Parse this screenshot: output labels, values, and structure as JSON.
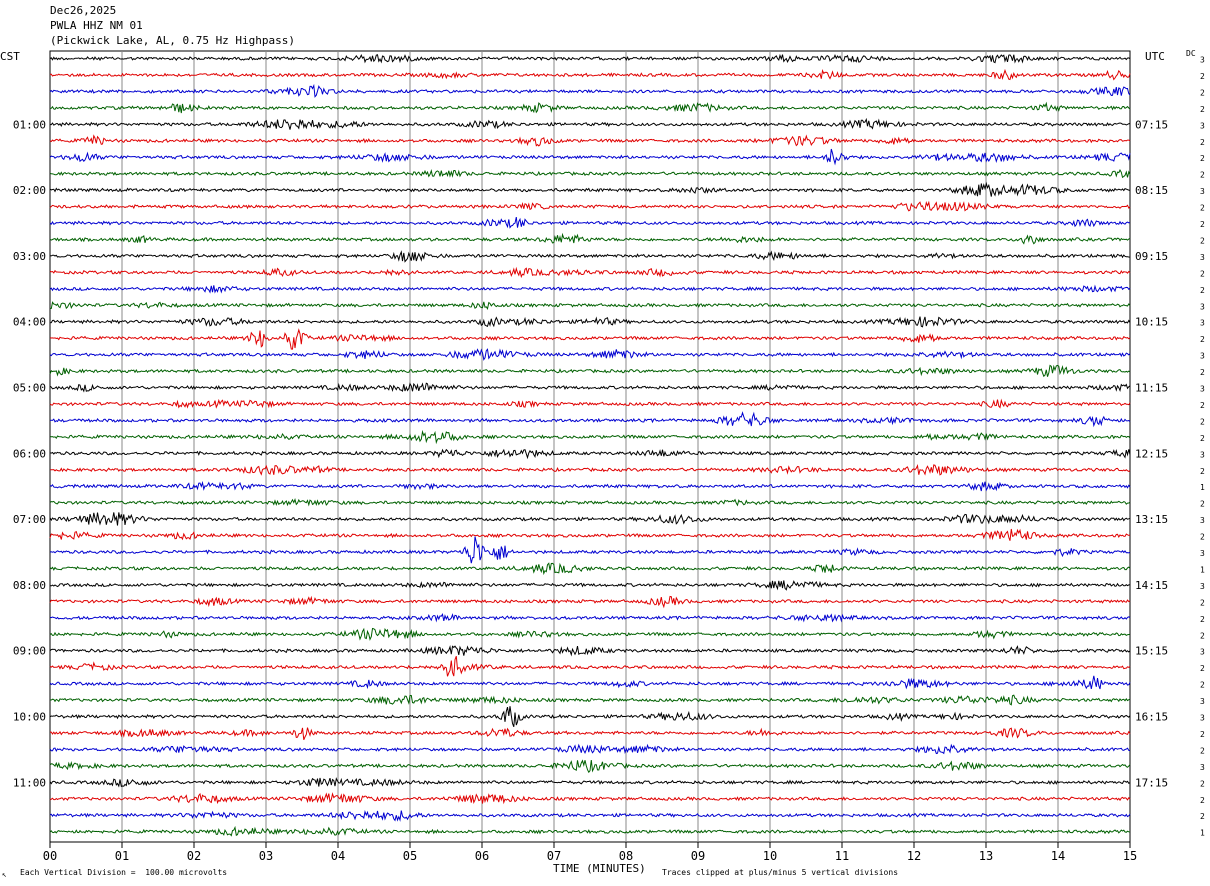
{
  "header": {
    "date": "Dec26,2025",
    "station": "PWLA HHZ NM 01",
    "location": "(Pickwick Lake, AL, 0.75 Hz Highpass)"
  },
  "left_tz": "CST",
  "right_tz": "UTC",
  "dc_label": "DC",
  "footer": {
    "xlabel": "TIME (MINUTES)",
    "scale_note": "Each Vertical Division =  100.00 microvolts",
    "clip_note": "Traces clipped at plus/minus 5 vertical divisions",
    "corner_mark": "↖"
  },
  "chart_data": {
    "type": "line",
    "title": "PWLA HHZ NM 01",
    "xlabel": "TIME (MINUTES)",
    "x_ticks": [
      "00",
      "01",
      "02",
      "03",
      "04",
      "05",
      "06",
      "07",
      "08",
      "09",
      "10",
      "11",
      "12",
      "13",
      "14",
      "15"
    ],
    "xlim": [
      0,
      15
    ],
    "rows": 48,
    "row_minutes": 15,
    "series_colors": [
      "#000000",
      "#e00000",
      "#0000d0",
      "#006000"
    ],
    "left_hour_labels": [
      {
        "row": 4,
        "text": "01:00"
      },
      {
        "row": 8,
        "text": "02:00"
      },
      {
        "row": 12,
        "text": "03:00"
      },
      {
        "row": 16,
        "text": "04:00"
      },
      {
        "row": 20,
        "text": "05:00"
      },
      {
        "row": 24,
        "text": "06:00"
      },
      {
        "row": 28,
        "text": "07:00"
      },
      {
        "row": 32,
        "text": "08:00"
      },
      {
        "row": 36,
        "text": "09:00"
      },
      {
        "row": 40,
        "text": "10:00"
      },
      {
        "row": 44,
        "text": "11:00"
      }
    ],
    "right_hour_labels": [
      {
        "row": 4,
        "text": "07:15"
      },
      {
        "row": 8,
        "text": "08:15"
      },
      {
        "row": 12,
        "text": "09:15"
      },
      {
        "row": 16,
        "text": "10:15"
      },
      {
        "row": 20,
        "text": "11:15"
      },
      {
        "row": 24,
        "text": "12:15"
      },
      {
        "row": 28,
        "text": "13:15"
      },
      {
        "row": 32,
        "text": "14:15"
      },
      {
        "row": 36,
        "text": "15:15"
      },
      {
        "row": 40,
        "text": "16:15"
      },
      {
        "row": 44,
        "text": "17:15"
      }
    ],
    "dc_values": [
      "3",
      "2",
      "2",
      "2",
      "3",
      "2",
      "2",
      "2",
      "3",
      "2",
      "2",
      "2",
      "3",
      "2",
      "2",
      "3",
      "3",
      "2",
      "3",
      "2",
      "3",
      "2",
      "2",
      "2",
      "3",
      "2",
      "1",
      "2",
      "3",
      "2",
      "3",
      "1",
      "3",
      "2",
      "2",
      "2",
      "3",
      "2",
      "2",
      "3",
      "3",
      "2",
      "2",
      "3",
      "2",
      "2",
      "2",
      "1"
    ],
    "events": [
      {
        "row": 17,
        "minute": 2.9,
        "amplitude": 9
      },
      {
        "row": 17,
        "minute": 3.4,
        "amplitude": 12
      },
      {
        "row": 30,
        "minute": 5.9,
        "amplitude": 16
      },
      {
        "row": 30,
        "minute": 6.25,
        "amplitude": 8
      },
      {
        "row": 37,
        "minute": 5.6,
        "amplitude": 10
      },
      {
        "row": 40,
        "minute": 6.4,
        "amplitude": 11
      },
      {
        "row": 6,
        "minute": 10.9,
        "amplitude": 9
      },
      {
        "row": 41,
        "minute": 3.5,
        "amplitude": 6
      },
      {
        "row": 38,
        "minute": 14.5,
        "amplitude": 7
      },
      {
        "row": 11,
        "minute": 13.6,
        "amplitude": 6
      },
      {
        "row": 10,
        "minute": 6.5,
        "amplitude": 5
      }
    ]
  }
}
